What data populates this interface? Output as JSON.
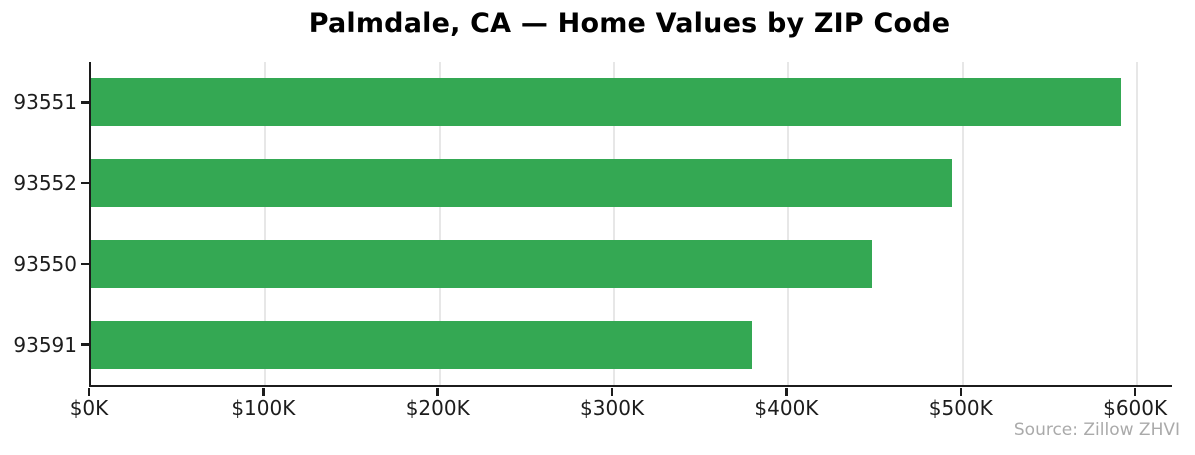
{
  "title": "Palmdale, CA — Home Values by ZIP Code",
  "colors": {
    "bar": "#34a853",
    "axis": "#1c1c1c",
    "grid": "#e7e7e7",
    "tick_label": "#1c1c1c",
    "source_text": "#aaaaaa"
  },
  "chart_data": {
    "type": "bar",
    "orientation": "horizontal",
    "title": "Palmdale, CA — Home Values by ZIP Code",
    "categories": [
      "93551",
      "93552",
      "93550",
      "93591"
    ],
    "values": [
      591000,
      494000,
      448000,
      379000
    ],
    "xlabel": "",
    "ylabel": "",
    "xlim": [
      0,
      620000
    ],
    "xticks": [
      0,
      100000,
      200000,
      300000,
      400000,
      500000,
      600000
    ],
    "xtick_labels": [
      "$0K",
      "$100K",
      "$200K",
      "$300K",
      "$400K",
      "$500K",
      "$600K"
    ],
    "grid": "vertical-only",
    "legend": "none",
    "annotation": "Source: Zillow ZHVI"
  }
}
